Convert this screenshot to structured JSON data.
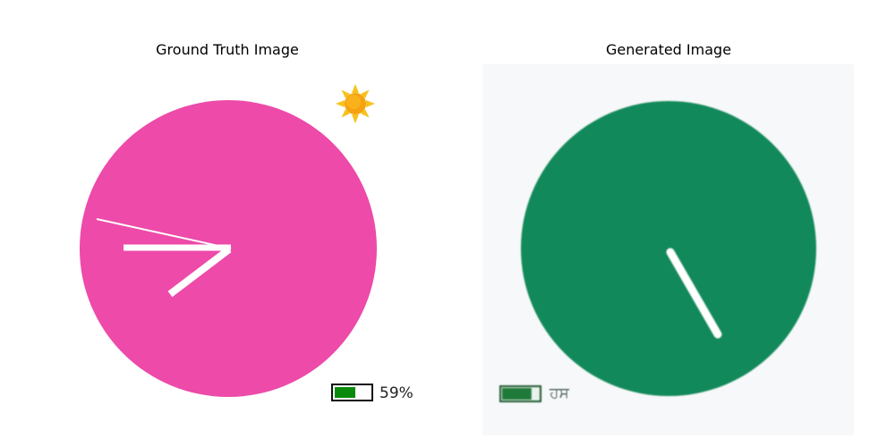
{
  "titles": {
    "left": "Ground Truth Image",
    "right": "Generated Image"
  },
  "ground_truth": {
    "dial_color": "#ed4aa9",
    "hand_color": "#ffffff",
    "icon": "sun-icon",
    "battery": {
      "level": 0.59,
      "label": "59%",
      "fill_color": "#0a8a0a"
    }
  },
  "generated": {
    "dial_color": "#12895a",
    "hand_color": "#ffffff",
    "battery": {
      "level": 0.8,
      "label": "ਹਸ",
      "fill_color": "#1f7a3a"
    }
  }
}
